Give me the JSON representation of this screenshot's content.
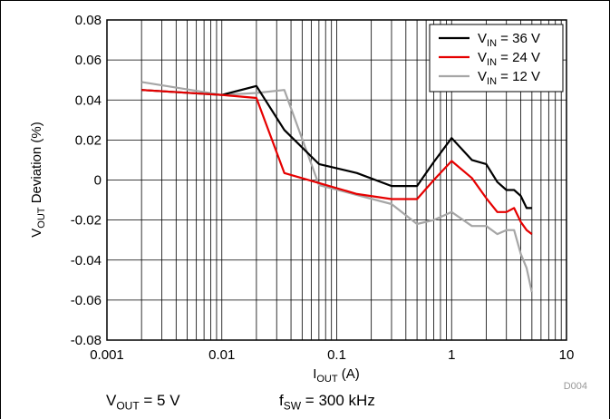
{
  "chart_data": {
    "type": "line",
    "xlabel": {
      "main": "I",
      "sub": "OUT",
      "rest": " (A)"
    },
    "ylabel": {
      "main": "V",
      "sub": "OUT",
      "rest": " Deviation (%)"
    },
    "x_scale": "log",
    "xlim": [
      0.001,
      10
    ],
    "ylim": [
      -0.08,
      0.08
    ],
    "x_ticks": [
      0.001,
      0.01,
      0.1,
      1,
      10
    ],
    "x_tick_labels": [
      "0.001",
      "0.01",
      "0.1",
      "1",
      "10"
    ],
    "y_ticks": [
      -0.08,
      -0.06,
      -0.04,
      -0.02,
      0,
      0.02,
      0.04,
      0.06,
      0.08
    ],
    "y_tick_labels": [
      "-0.08",
      "-0.06",
      "-0.04",
      "-0.02",
      "0",
      "0.02",
      "0.04",
      "0.06",
      "0.08"
    ],
    "grid": true,
    "legend_position": "top-right",
    "series": [
      {
        "name": {
          "main": "V",
          "sub": "IN",
          "rest": " = 36 V"
        },
        "color": "#000000",
        "points": [
          [
            0.002,
            0.045
          ],
          [
            0.01,
            0.0425
          ],
          [
            0.02,
            0.047
          ],
          [
            0.035,
            0.025
          ],
          [
            0.07,
            0.008
          ],
          [
            0.15,
            0.0035
          ],
          [
            0.3,
            -0.003
          ],
          [
            0.5,
            -0.003
          ],
          [
            0.7,
            0.009
          ],
          [
            1.0,
            0.021
          ],
          [
            1.5,
            0.01
          ],
          [
            2.0,
            0.008
          ],
          [
            2.5,
            -0.001
          ],
          [
            3.0,
            -0.005
          ],
          [
            3.5,
            -0.005
          ],
          [
            4.0,
            -0.008
          ],
          [
            4.5,
            -0.014
          ],
          [
            5.0,
            -0.014
          ]
        ]
      },
      {
        "name": {
          "main": "V",
          "sub": "IN",
          "rest": " = 24 V"
        },
        "color": "#e60000",
        "points": [
          [
            0.002,
            0.045
          ],
          [
            0.01,
            0.0425
          ],
          [
            0.02,
            0.041
          ],
          [
            0.035,
            0.0035
          ],
          [
            0.07,
            -0.0015
          ],
          [
            0.15,
            -0.007
          ],
          [
            0.3,
            -0.0095
          ],
          [
            0.5,
            -0.0095
          ],
          [
            0.7,
            0.0
          ],
          [
            1.0,
            0.0095
          ],
          [
            1.5,
            0.001
          ],
          [
            2.0,
            -0.009
          ],
          [
            2.5,
            -0.016
          ],
          [
            3.0,
            -0.016
          ],
          [
            3.5,
            -0.014
          ],
          [
            4.0,
            -0.021
          ],
          [
            4.5,
            -0.025
          ],
          [
            5.0,
            -0.027
          ]
        ]
      },
      {
        "name": {
          "main": "V",
          "sub": "IN",
          "rest": " = 12 V"
        },
        "color": "#a6a6a6",
        "points": [
          [
            0.002,
            0.049
          ],
          [
            0.01,
            0.0425
          ],
          [
            0.02,
            0.0435
          ],
          [
            0.035,
            0.045
          ],
          [
            0.07,
            -0.0025
          ],
          [
            0.15,
            -0.0075
          ],
          [
            0.3,
            -0.012
          ],
          [
            0.5,
            -0.022
          ],
          [
            0.7,
            -0.02
          ],
          [
            1.0,
            -0.016
          ],
          [
            1.5,
            -0.023
          ],
          [
            2.0,
            -0.023
          ],
          [
            2.5,
            -0.027
          ],
          [
            3.0,
            -0.025
          ],
          [
            3.5,
            -0.025
          ],
          [
            4.0,
            -0.037
          ],
          [
            4.5,
            -0.044
          ],
          [
            5.0,
            -0.056
          ]
        ]
      }
    ]
  },
  "figure_id": "D004",
  "conditions": {
    "vout": {
      "main": "V",
      "sub": "OUT",
      "rest": " = 5 V"
    },
    "fsw": {
      "main": "f",
      "sub": "SW",
      "rest": " = 300 kHz"
    }
  }
}
